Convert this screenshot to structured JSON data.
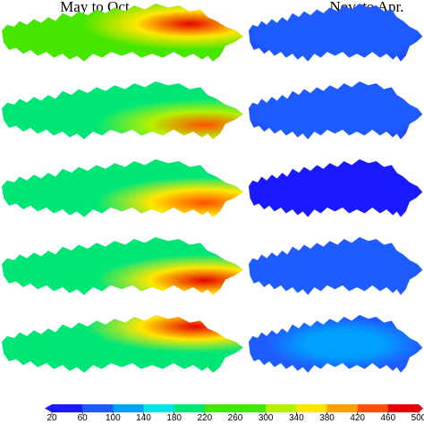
{
  "columns": [
    {
      "title": "May to Oct."
    },
    {
      "title": "Nov. to Apr."
    }
  ],
  "rows": 5,
  "colors": {
    "background": "#ffffff",
    "ramp": [
      "#1a1aff",
      "#1f5cff",
      "#00a0ff",
      "#00e6e6",
      "#00e676",
      "#46e600",
      "#b4f000",
      "#ffe600",
      "#ffa000",
      "#ff5000",
      "#e60000"
    ]
  },
  "colorbar": {
    "min": 20,
    "max": 520,
    "tick_labels": [
      "20",
      "60",
      "100",
      "140",
      "180",
      "220",
      "260",
      "300",
      "340",
      "380",
      "420",
      "460",
      "500"
    ]
  },
  "map_panels": [
    {
      "column": 0,
      "row": 0,
      "base_value": 280,
      "hotspot": "east",
      "hot_value": 500
    },
    {
      "column": 0,
      "row": 1,
      "base_value": 200,
      "hotspot": "southeast",
      "hot_value": 460
    },
    {
      "column": 0,
      "row": 2,
      "base_value": 235,
      "hotspot": "southeast",
      "hot_value": 480
    },
    {
      "column": 0,
      "row": 3,
      "base_value": 240,
      "hotspot": "southeast",
      "hot_value": 500
    },
    {
      "column": 0,
      "row": 4,
      "base_value": 220,
      "hotspot": "northeast",
      "hot_value": 500
    },
    {
      "column": 1,
      "row": 0,
      "base_value": 40,
      "hotspot": "none",
      "hot_value": 60
    },
    {
      "column": 1,
      "row": 1,
      "base_value": 40,
      "hotspot": "none",
      "hot_value": 50
    },
    {
      "column": 1,
      "row": 2,
      "base_value": 30,
      "hotspot": "none",
      "hot_value": 40
    },
    {
      "column": 1,
      "row": 3,
      "base_value": 50,
      "hotspot": "none",
      "hot_value": 70
    },
    {
      "column": 1,
      "row": 4,
      "base_value": 70,
      "hotspot": "patchy",
      "hot_value": 130
    }
  ]
}
